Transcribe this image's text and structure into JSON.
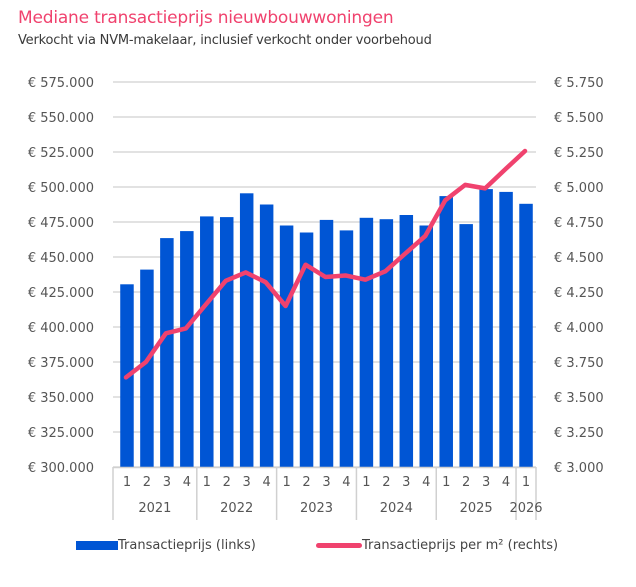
{
  "chart_data": {
    "type": "bar+line",
    "title": "Mediane transactieprijs nieuwbouwwoningen",
    "subtitle": "Verkocht via NVM-makelaar, inclusief verkocht onder voorbehoud",
    "quarters": [
      "1",
      "2",
      "3",
      "4",
      "1",
      "2",
      "3",
      "4",
      "1",
      "2",
      "3",
      "4",
      "1",
      "2",
      "3",
      "4",
      "1",
      "2",
      "3",
      "4",
      "1"
    ],
    "years": [
      {
        "label": "2021",
        "quarters": 4
      },
      {
        "label": "2022",
        "quarters": 4
      },
      {
        "label": "2023",
        "quarters": 4
      },
      {
        "label": "2024",
        "quarters": 4
      },
      {
        "label": "2025",
        "quarters": 4
      },
      {
        "label": "2026",
        "quarters": 1
      }
    ],
    "series": [
      {
        "name": "Transactieprijs (links)",
        "type": "bar",
        "axis": "left",
        "color": "#0055d4",
        "values": [
          430500,
          441000,
          463500,
          468500,
          479000,
          478500,
          495500,
          487500,
          472500,
          467500,
          476500,
          469000,
          478000,
          477000,
          480000,
          472500,
          493500,
          473500,
          498500,
          496500,
          488000
        ]
      },
      {
        "name": "Transactieprijs per m² (rechts)",
        "type": "line",
        "axis": "right",
        "color": "#f0426e",
        "values": [
          3640,
          3750,
          3955,
          3990,
          4160,
          4330,
          4390,
          4320,
          4150,
          4445,
          4357,
          4368,
          4338,
          4398,
          4525,
          4650,
          4905,
          5015,
          4990,
          5125,
          5257
        ]
      }
    ],
    "left_axis": {
      "min": 300000,
      "max": 575000,
      "step": 25000,
      "tick_labels": [
        "€ 300.000",
        "€ 325.000",
        "€ 350.000",
        "€ 375.000",
        "€ 400.000",
        "€ 425.000",
        "€ 450.000",
        "€ 475.000",
        "€ 500.000",
        "€ 525.000",
        "€ 550.000",
        "€ 575.000"
      ]
    },
    "right_axis": {
      "min": 3000,
      "max": 5750,
      "step": 250,
      "tick_labels": [
        "€ 3.000",
        "€ 3.250",
        "€ 3.500",
        "€ 3.750",
        "€ 4.000",
        "€ 4.250",
        "€ 4.500",
        "€ 4.750",
        "€ 5.000",
        "€ 5.250",
        "€ 5.500",
        "€ 5.750"
      ]
    },
    "grid": true,
    "legend_position": "bottom",
    "legend": [
      "Transactieprijs (links)",
      "Transactieprijs per m² (rechts)"
    ]
  }
}
